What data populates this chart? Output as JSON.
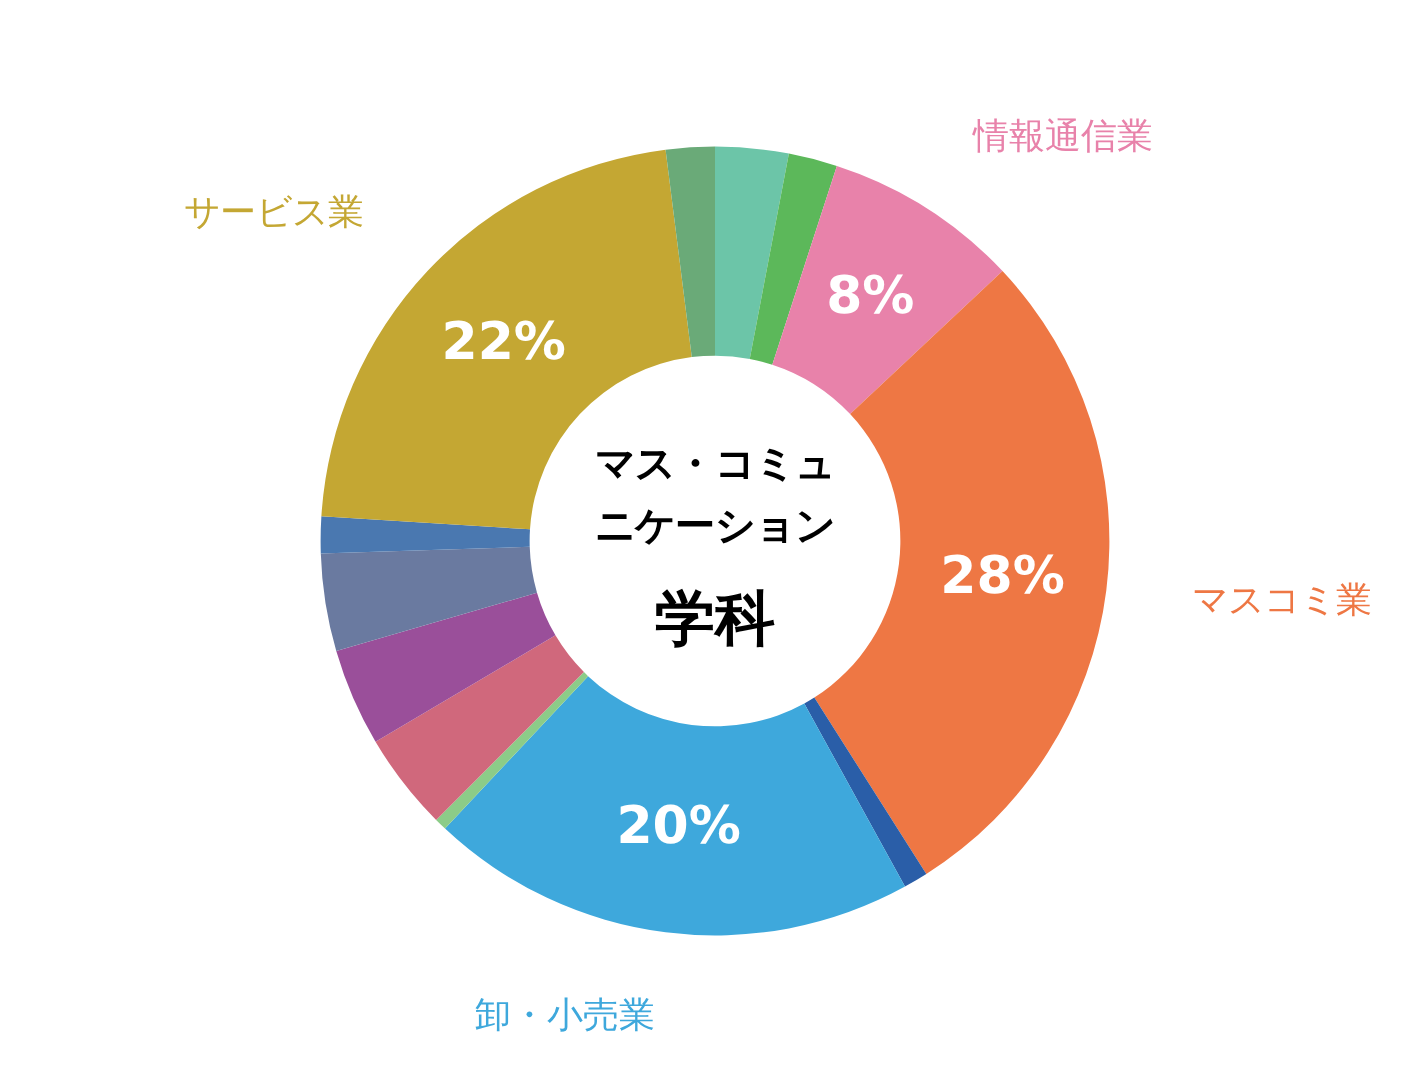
{
  "chart_data": {
    "type": "donut",
    "title": "マス・コミュニケーション",
    "subtitle": "学科",
    "categories": [
      null,
      null,
      "情報通信業",
      "マスコミ業",
      null,
      "卸・小売業",
      null,
      null,
      null,
      null,
      null,
      "サービス業",
      null
    ],
    "values": [
      3,
      2,
      8,
      28,
      1,
      20,
      0.5,
      4,
      4,
      4,
      1.5,
      22,
      2
    ],
    "colors": [
      "#6cc5a8",
      "#5cb85a",
      "#e882aa",
      "#ee7744",
      "#2a5ea8",
      "#3ea8dc",
      "#8ccc88",
      "#d0687c",
      "#9a4f9a",
      "#6a7aa0",
      "#4a78b0",
      "#c4a733",
      "#6aaa78"
    ],
    "value_labels": [
      null,
      null,
      "8%",
      "28%",
      null,
      "20%",
      null,
      null,
      null,
      null,
      null,
      "22%",
      null
    ]
  }
}
